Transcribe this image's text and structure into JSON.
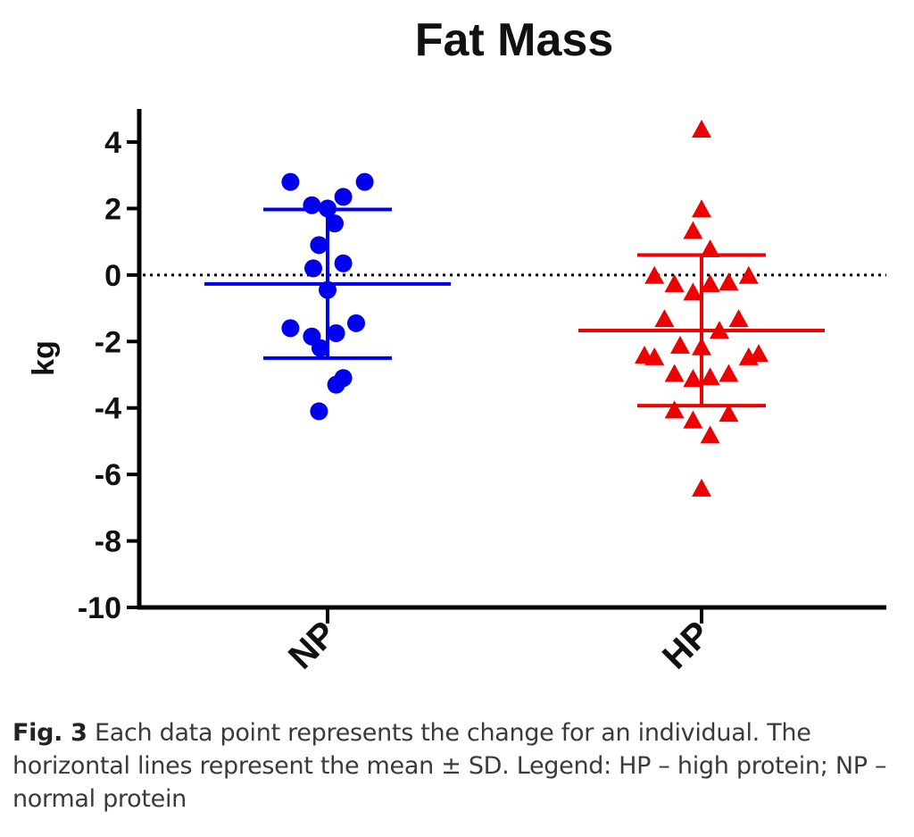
{
  "chart_data": {
    "type": "scatter",
    "title": "Fat Mass",
    "ylabel": "kg",
    "xlabel": "",
    "categories": [
      "NP",
      "HP"
    ],
    "ylim": [
      -10,
      5
    ],
    "yticks": [
      4,
      2,
      0,
      -2,
      -4,
      -6,
      -8,
      -10
    ],
    "reference_line": {
      "y": 0,
      "style": "dotted"
    },
    "series": [
      {
        "category": "NP",
        "marker": "circle",
        "color": "#0000ee",
        "points": [
          {
            "x": -0.52,
            "y": 2.8
          },
          {
            "x": 0.52,
            "y": 2.8
          },
          {
            "x": -0.22,
            "y": 2.1
          },
          {
            "x": 0.0,
            "y": 2.0
          },
          {
            "x": 0.22,
            "y": 2.35
          },
          {
            "x": 0.1,
            "y": 1.55
          },
          {
            "x": -0.12,
            "y": 0.9
          },
          {
            "x": -0.2,
            "y": 0.2
          },
          {
            "x": 0.22,
            "y": 0.35
          },
          {
            "x": 0.0,
            "y": -0.45
          },
          {
            "x": -0.52,
            "y": -1.6
          },
          {
            "x": 0.4,
            "y": -1.45
          },
          {
            "x": -0.22,
            "y": -1.85
          },
          {
            "x": 0.12,
            "y": -1.75
          },
          {
            "x": -0.1,
            "y": -2.2
          },
          {
            "x": 0.22,
            "y": -3.1
          },
          {
            "x": 0.12,
            "y": -3.3
          },
          {
            "x": -0.12,
            "y": -4.1
          }
        ],
        "mean": -0.27,
        "sd_upper": 1.97,
        "sd_lower": -2.5
      },
      {
        "category": "HP",
        "marker": "triangle",
        "color": "#ee0000",
        "points": [
          {
            "x": 0.0,
            "y": 4.35
          },
          {
            "x": 0.0,
            "y": 1.95
          },
          {
            "x": -0.12,
            "y": 1.3
          },
          {
            "x": 0.12,
            "y": 0.75
          },
          {
            "x": -0.66,
            "y": -0.05
          },
          {
            "x": 0.66,
            "y": -0.05
          },
          {
            "x": -0.38,
            "y": -0.3
          },
          {
            "x": 0.38,
            "y": -0.25
          },
          {
            "x": -0.12,
            "y": -0.55
          },
          {
            "x": 0.12,
            "y": -0.3
          },
          {
            "x": -0.52,
            "y": -1.35
          },
          {
            "x": 0.52,
            "y": -1.35
          },
          {
            "x": 0.25,
            "y": -1.7
          },
          {
            "x": -0.3,
            "y": -2.15
          },
          {
            "x": 0.0,
            "y": -2.2
          },
          {
            "x": -0.8,
            "y": -2.45
          },
          {
            "x": -0.66,
            "y": -2.5
          },
          {
            "x": 0.66,
            "y": -2.5
          },
          {
            "x": 0.8,
            "y": -2.4
          },
          {
            "x": -0.38,
            "y": -3.0
          },
          {
            "x": -0.12,
            "y": -3.15
          },
          {
            "x": 0.12,
            "y": -3.1
          },
          {
            "x": 0.38,
            "y": -3.0
          },
          {
            "x": -0.38,
            "y": -4.1
          },
          {
            "x": 0.38,
            "y": -4.2
          },
          {
            "x": -0.12,
            "y": -4.4
          },
          {
            "x": 0.12,
            "y": -4.85
          },
          {
            "x": 0.0,
            "y": -6.45
          }
        ],
        "mean": -1.67,
        "sd_upper": 0.6,
        "sd_lower": -3.93
      }
    ]
  },
  "caption": {
    "label": "Fig. 3",
    "text": " Each data point represents the change for an individual. The horizontal lines represent the mean ± SD. Legend: HP – high protein; NP – normal protein"
  }
}
